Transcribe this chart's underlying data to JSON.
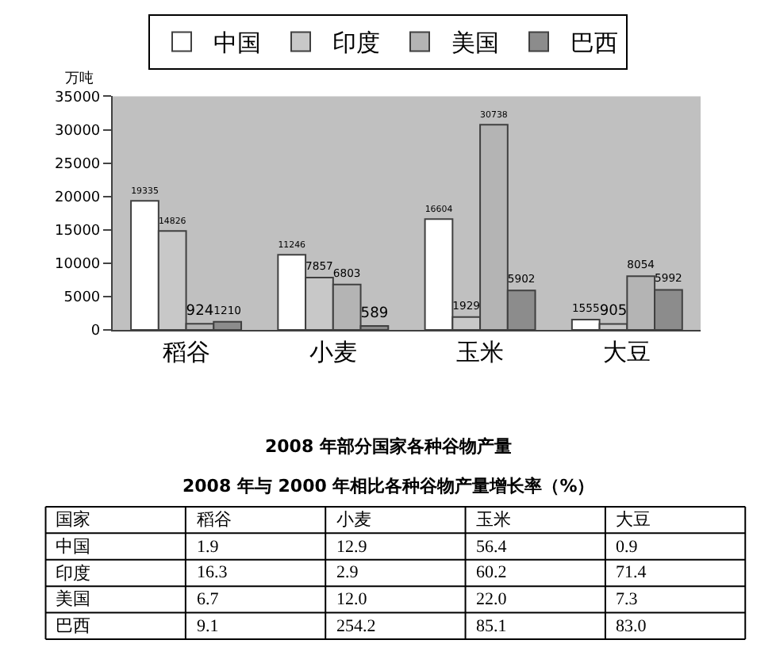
{
  "chart_data": [
    {
      "type": "bar",
      "title": "2008 年部分国家各种谷物产量",
      "ylabel": "万吨",
      "categories": [
        "稻谷",
        "小麦",
        "玉米",
        "大豆"
      ],
      "series": [
        {
          "name": "中国",
          "color": "#ffffff",
          "values": [
            19335,
            11246,
            16604,
            1555
          ]
        },
        {
          "name": "印度",
          "color": "#c8c8c8",
          "values": [
            14826,
            7857,
            1929,
            905
          ]
        },
        {
          "name": "美国",
          "color": "#b4b4b4",
          "values": [
            924,
            6803,
            30738,
            8054
          ]
        },
        {
          "name": "巴西",
          "color": "#8c8c8c",
          "values": [
            1210,
            589,
            5902,
            5992
          ]
        }
      ],
      "ylim": [
        0,
        35000
      ],
      "yticks": [
        0,
        5000,
        10000,
        15000,
        20000,
        25000,
        30000,
        35000
      ],
      "data_labels": true,
      "legend": "top",
      "grid": false
    },
    {
      "type": "heatmap",
      "title": "2008 年与 2000 年相比各种谷物产量增长率（%）",
      "ylabel": "国家",
      "categories": [
        "稻谷",
        "小麦",
        "玉米",
        "大豆"
      ],
      "y_categories": [
        "中国",
        "印度",
        "美国",
        "巴西"
      ],
      "cells": [
        [
          1.9,
          12.9,
          56.4,
          0.9
        ],
        [
          16.3,
          2.9,
          60.2,
          71.4
        ],
        [
          6.7,
          12.0,
          22.0,
          7.3
        ],
        [
          9.1,
          254.2,
          85.1,
          83.0
        ]
      ],
      "cell_labels": [
        [
          "1.9",
          "12.9",
          "56.4",
          "0.9"
        ],
        [
          "16.3",
          "2.9",
          "60.2",
          "71.4"
        ],
        [
          "6.7",
          "12.0",
          "22.0",
          "7.3"
        ],
        [
          "9.1",
          "254.2",
          "85.1",
          "83.0"
        ]
      ]
    }
  ]
}
